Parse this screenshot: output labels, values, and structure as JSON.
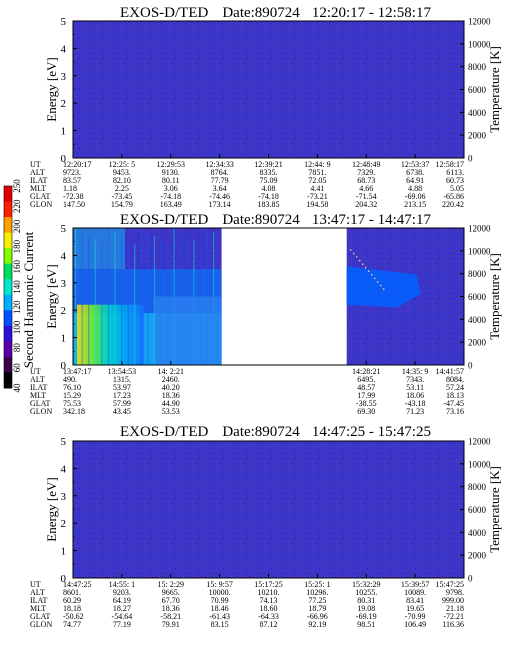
{
  "chart_data": [
    {
      "type": "heatmap",
      "title": "EXOS-D/TED",
      "date_label": "Date:890724",
      "time_range": "12:20:17 - 12:58:17",
      "ylabel": "Energy [eV]",
      "y2label": "Temperature [K]",
      "ylim": [
        0,
        5
      ],
      "y2lim": [
        0,
        12000
      ],
      "yticks": [
        "0",
        "1",
        "2",
        "3",
        "4",
        "5"
      ],
      "y2ticks": [
        "0",
        "2000",
        "4000",
        "6000",
        "8000",
        "10000",
        "12000"
      ],
      "coverage": [
        [
          0,
          1
        ]
      ],
      "style": "flat",
      "ephemeris": {
        "row_labels": [
          "UT",
          "ALT",
          "ILAT",
          "MLT",
          "GLAT",
          "GLON"
        ],
        "columns": [
          {
            "ut": "12:20:17",
            "alt": "9723.",
            "ilat": "83.57",
            "mlt": "1.18",
            "glat": "-72.38",
            "glon": "147.50"
          },
          {
            "ut": "12:25: 5",
            "alt": "9453.",
            "ilat": "82.10",
            "mlt": "2.25",
            "glat": "-73.45",
            "glon": "154.79"
          },
          {
            "ut": "12:29:53",
            "alt": "9130.",
            "ilat": "80.11",
            "mlt": "3.06",
            "glat": "-74.18",
            "glon": "163.49"
          },
          {
            "ut": "12:34:33",
            "alt": "8764.",
            "ilat": "77.79",
            "mlt": "3.64",
            "glat": "-74.46",
            "glon": "173.14"
          },
          {
            "ut": "12:39:21",
            "alt": "8335.",
            "ilat": "75.09",
            "mlt": "4.08",
            "glat": "-74.18",
            "glon": "183.85"
          },
          {
            "ut": "12:44: 9",
            "alt": "7851.",
            "ilat": "72.05",
            "mlt": "4.41",
            "glat": "-73.21",
            "glon": "194.58"
          },
          {
            "ut": "12:48:49",
            "alt": "7329.",
            "ilat": "68.73",
            "mlt": "4.66",
            "glat": "-71.54",
            "glon": "204.32"
          },
          {
            "ut": "12:53:37",
            "alt": "6738.",
            "ilat": "64.91",
            "mlt": "4.88",
            "glat": "-69.06",
            "glon": "213.15"
          },
          {
            "ut": "12:58:17",
            "alt": "6113.",
            "ilat": "60.73",
            "mlt": "5.05",
            "glat": "-65.86",
            "glon": "220.42"
          }
        ]
      }
    },
    {
      "type": "heatmap",
      "title": "EXOS-D/TED",
      "date_label": "Date:890724",
      "time_range": "13:47:17 - 14:47:17",
      "ylabel": "Energy [eV]",
      "y2label": "Temperature [K]",
      "ylim": [
        0,
        5
      ],
      "y2lim": [
        0,
        12000
      ],
      "yticks": [
        "0",
        "1",
        "2",
        "3",
        "4",
        "5"
      ],
      "y2ticks": [
        "0",
        "2000",
        "4000",
        "6000",
        "8000",
        "10000",
        "12000"
      ],
      "coverage": [
        [
          0,
          0.38
        ],
        [
          0.7,
          1
        ]
      ],
      "style": "active",
      "colorbar": {
        "label": "Second Harmonic Current",
        "ticks": [
          "40",
          "60",
          "80",
          "100",
          "120",
          "140",
          "160",
          "180",
          "200",
          "220",
          "250"
        ],
        "colors": [
          "#000000",
          "#3a0048",
          "#5a00a8",
          "#2a10d8",
          "#0050ff",
          "#00b0ff",
          "#00e8d0",
          "#00e060",
          "#80ff00",
          "#f8f000",
          "#ffa000",
          "#ff2000",
          "#e00000"
        ]
      },
      "ephemeris": {
        "row_labels": [
          "UT",
          "ALT",
          "ILAT",
          "MLT",
          "GLAT",
          "GLON"
        ],
        "columns": [
          {
            "ut": "13:47:17",
            "alt": "490.",
            "ilat": "76.10",
            "mlt": "15.29",
            "glat": "75.53",
            "glon": "342.18"
          },
          {
            "ut": "13:54:53",
            "alt": "1315.",
            "ilat": "53.97",
            "mlt": "17.23",
            "glat": "57.99",
            "glon": "43.45"
          },
          {
            "ut": "14: 2:21",
            "alt": "2460.",
            "ilat": "40.20",
            "mlt": "18.36",
            "glat": "44.90",
            "glon": "53.53"
          },
          {
            "ut": "",
            "alt": "",
            "ilat": "",
            "mlt": "",
            "glat": "",
            "glon": ""
          },
          {
            "ut": "",
            "alt": "",
            "ilat": "",
            "mlt": "",
            "glat": "",
            "glon": ""
          },
          {
            "ut": "",
            "alt": "",
            "ilat": "",
            "mlt": "",
            "glat": "",
            "glon": ""
          },
          {
            "ut": "14:28:21",
            "alt": "6495.",
            "ilat": "48.57",
            "mlt": "17.99",
            "glat": "-38.55",
            "glon": "69.30"
          },
          {
            "ut": "14:35: 9",
            "alt": "7343.",
            "ilat": "53.11",
            "mlt": "18.06",
            "glat": "-43.18",
            "glon": "71.23"
          },
          {
            "ut": "14:41:57",
            "alt": "8084.",
            "ilat": "57.24",
            "mlt": "18.13",
            "glat": "-47.45",
            "glon": "73.16"
          }
        ]
      }
    },
    {
      "type": "heatmap",
      "title": "EXOS-D/TED",
      "date_label": "Date:890724",
      "time_range": "14:47:25 - 15:47:25",
      "ylabel": "Energy [eV]",
      "y2label": "Temperature [K]",
      "ylim": [
        0,
        5
      ],
      "y2lim": [
        0,
        12000
      ],
      "yticks": [
        "0",
        "1",
        "2",
        "3",
        "4",
        "5"
      ],
      "y2ticks": [
        "0",
        "2000",
        "4000",
        "6000",
        "8000",
        "10000",
        "12000"
      ],
      "coverage": [
        [
          0,
          1
        ]
      ],
      "style": "flat",
      "ephemeris": {
        "row_labels": [
          "UT",
          "ALT",
          "ILAT",
          "MLT",
          "GLAT",
          "GLON"
        ],
        "columns": [
          {
            "ut": "14:47:25",
            "alt": "8601.",
            "ilat": "60.29",
            "mlt": "18.18",
            "glat": "-50.62",
            "glon": "74.77"
          },
          {
            "ut": "14:55: 1",
            "alt": "9203.",
            "ilat": "64.19",
            "mlt": "18.27",
            "glat": "-54.64",
            "glon": "77.19"
          },
          {
            "ut": "15: 2:29",
            "alt": "9665.",
            "ilat": "67.70",
            "mlt": "18.36",
            "glat": "-58.21",
            "glon": "79.91"
          },
          {
            "ut": "15: 9:57",
            "alt": "10000.",
            "ilat": "70.99",
            "mlt": "18.46",
            "glat": "-61.43",
            "glon": "83.15"
          },
          {
            "ut": "15:17:25",
            "alt": "10210.",
            "ilat": "74.13",
            "mlt": "18.60",
            "glat": "-64.33",
            "glon": "87.12"
          },
          {
            "ut": "15:25: 1",
            "alt": "10296.",
            "ilat": "77.25",
            "mlt": "18.79",
            "glat": "-66.96",
            "glon": "92.19"
          },
          {
            "ut": "15:32:29",
            "alt": "10255.",
            "ilat": "80.31",
            "mlt": "19.08",
            "glat": "-69.19",
            "glon": "98.51"
          },
          {
            "ut": "15:39:57",
            "alt": "10089.",
            "ilat": "83.41",
            "mlt": "19.65",
            "glat": "-70.99",
            "glon": "106.49"
          },
          {
            "ut": "15:47:25",
            "alt": "9798.",
            "ilat": "999.00",
            "mlt": "21.18",
            "glat": "-72.21",
            "glon": "116.36"
          }
        ]
      }
    }
  ]
}
